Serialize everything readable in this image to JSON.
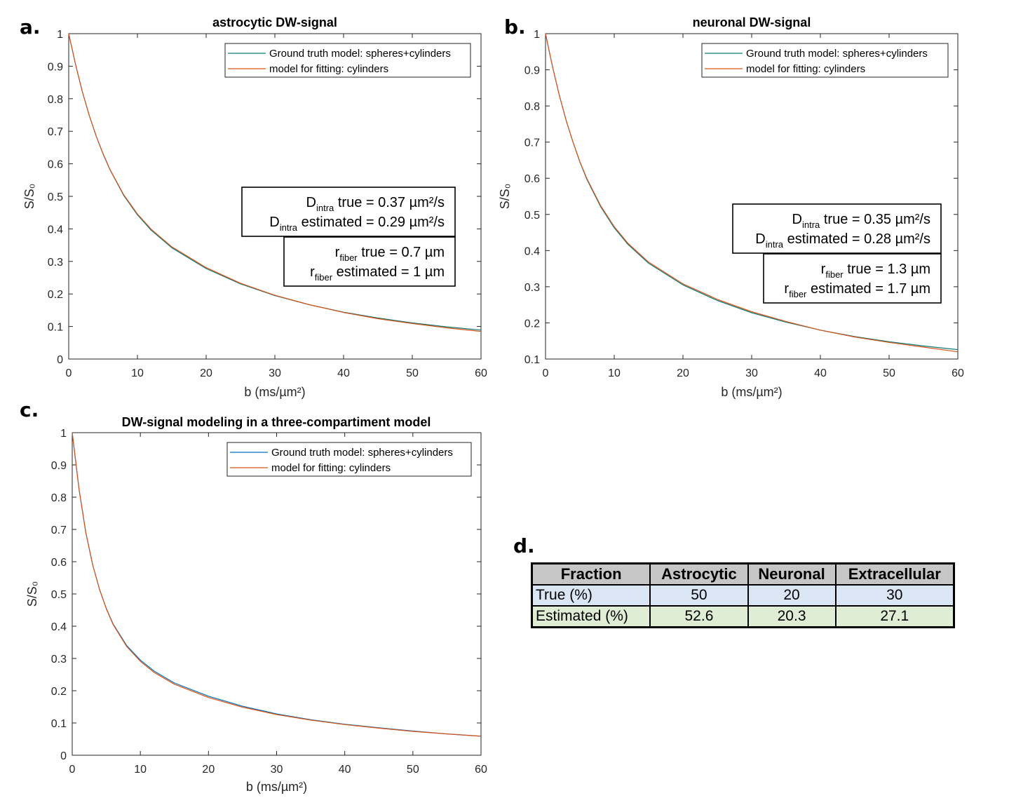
{
  "panels": {
    "a": {
      "letter": "a."
    },
    "b": {
      "letter": "b."
    },
    "c": {
      "letter": "c."
    },
    "d": {
      "letter": "d."
    }
  },
  "chart_data": [
    {
      "id": "a",
      "type": "line",
      "title": "astrocytic DW-signal",
      "xlabel": "b (ms/µm²)",
      "ylabel": "S/S₀",
      "xlim": [
        0,
        60
      ],
      "ylim": [
        0,
        1
      ],
      "xticks": [
        0,
        10,
        20,
        30,
        40,
        50,
        60
      ],
      "yticks": [
        0,
        0.1,
        0.2,
        0.3,
        0.4,
        0.5,
        0.6,
        0.7,
        0.8,
        0.9,
        1
      ],
      "grid": false,
      "legend_position": "top-right",
      "series": [
        {
          "name": "Ground truth model: spheres+cylinders",
          "color": "#0b7a75",
          "x": [
            0,
            1,
            2,
            3,
            4,
            5,
            6,
            8,
            10,
            12,
            15,
            20,
            25,
            30,
            35,
            40,
            45,
            50,
            55,
            60
          ],
          "y": [
            1.0,
            0.905,
            0.82,
            0.748,
            0.685,
            0.63,
            0.582,
            0.503,
            0.443,
            0.396,
            0.342,
            0.278,
            0.231,
            0.195,
            0.167,
            0.144,
            0.126,
            0.111,
            0.099,
            0.089
          ]
        },
        {
          "name": "model for fitting: cylinders",
          "color": "#d95319",
          "x": [
            0,
            1,
            2,
            3,
            4,
            5,
            6,
            8,
            10,
            12,
            15,
            20,
            25,
            30,
            35,
            40,
            45,
            50,
            55,
            60
          ],
          "y": [
            1.0,
            0.905,
            0.82,
            0.748,
            0.685,
            0.631,
            0.583,
            0.505,
            0.446,
            0.399,
            0.345,
            0.281,
            0.233,
            0.196,
            0.167,
            0.143,
            0.124,
            0.109,
            0.096,
            0.085
          ]
        }
      ],
      "annotations": [
        {
          "lines": [
            {
              "base": "D",
              "sub": "intra",
              "text": " true = 0.37 µm²/s"
            },
            {
              "base": "D",
              "sub": "intra",
              "text": " estimated = 0.29 µm²/s"
            }
          ]
        },
        {
          "lines": [
            {
              "base": "r",
              "sub": "fiber",
              "text": " true = 0.7 µm"
            },
            {
              "base": "r",
              "sub": "fiber",
              "text": " estimated = 1 µm"
            }
          ]
        }
      ]
    },
    {
      "id": "b",
      "type": "line",
      "title": "neuronal DW-signal",
      "xlabel": "b (ms/µm²)",
      "ylabel": "S/S₀",
      "xlim": [
        0,
        60
      ],
      "ylim": [
        0.1,
        1
      ],
      "xticks": [
        0,
        10,
        20,
        30,
        40,
        50,
        60
      ],
      "yticks": [
        0.1,
        0.2,
        0.3,
        0.4,
        0.5,
        0.6,
        0.7,
        0.8,
        0.9,
        1
      ],
      "grid": false,
      "legend_position": "top-right",
      "series": [
        {
          "name": "Ground truth model: spheres+cylinders",
          "color": "#0b7a75",
          "x": [
            0,
            1,
            2,
            3,
            4,
            5,
            6,
            8,
            10,
            12,
            15,
            20,
            25,
            30,
            35,
            40,
            45,
            50,
            55,
            60
          ],
          "y": [
            1.0,
            0.91,
            0.83,
            0.76,
            0.7,
            0.645,
            0.598,
            0.522,
            0.463,
            0.417,
            0.365,
            0.305,
            0.262,
            0.228,
            0.202,
            0.18,
            0.162,
            0.148,
            0.136,
            0.126
          ]
        },
        {
          "name": "model for fitting: cylinders",
          "color": "#d95319",
          "x": [
            0,
            1,
            2,
            3,
            4,
            5,
            6,
            8,
            10,
            12,
            15,
            20,
            25,
            30,
            35,
            40,
            45,
            50,
            55,
            60
          ],
          "y": [
            1.0,
            0.91,
            0.83,
            0.76,
            0.7,
            0.646,
            0.6,
            0.525,
            0.466,
            0.42,
            0.368,
            0.308,
            0.265,
            0.231,
            0.204,
            0.18,
            0.161,
            0.146,
            0.133,
            0.12
          ]
        }
      ],
      "annotations": [
        {
          "lines": [
            {
              "base": "D",
              "sub": "intra",
              "text": " true = 0.35 µm²/s"
            },
            {
              "base": "D",
              "sub": "intra",
              "text": " estimated = 0.28 µm²/s"
            }
          ]
        },
        {
          "lines": [
            {
              "base": "r",
              "sub": "fiber",
              "text": " true = 1.3 µm"
            },
            {
              "base": "r",
              "sub": "fiber",
              "text": " estimated = 1.7 µm"
            }
          ]
        }
      ]
    },
    {
      "id": "c",
      "type": "line",
      "title": "DW-signal modeling in a three-compartiment model",
      "xlabel": "b (ms/µm²)",
      "ylabel": "S/S₀",
      "xlim": [
        0,
        60
      ],
      "ylim": [
        0,
        1
      ],
      "xticks": [
        0,
        10,
        20,
        30,
        40,
        50,
        60
      ],
      "yticks": [
        0,
        0.1,
        0.2,
        0.3,
        0.4,
        0.5,
        0.6,
        0.7,
        0.8,
        0.9,
        1
      ],
      "grid": false,
      "legend_position": "top-right",
      "series": [
        {
          "name": "Ground truth model: spheres+cylinders",
          "color": "#0072bd",
          "x": [
            0,
            1,
            2,
            3,
            4,
            5,
            6,
            8,
            10,
            12,
            15,
            20,
            25,
            30,
            35,
            40,
            45,
            50,
            55,
            60
          ],
          "y": [
            1.0,
            0.825,
            0.69,
            0.59,
            0.515,
            0.455,
            0.407,
            0.34,
            0.295,
            0.261,
            0.224,
            0.183,
            0.152,
            0.128,
            0.11,
            0.096,
            0.085,
            0.075,
            0.066,
            0.059
          ]
        },
        {
          "name": "model for fitting: cylinders",
          "color": "#d95319",
          "x": [
            0,
            1,
            2,
            3,
            4,
            5,
            6,
            8,
            10,
            12,
            15,
            20,
            25,
            30,
            35,
            40,
            45,
            50,
            55,
            60
          ],
          "y": [
            1.0,
            0.825,
            0.69,
            0.59,
            0.514,
            0.454,
            0.405,
            0.337,
            0.291,
            0.257,
            0.22,
            0.179,
            0.149,
            0.126,
            0.109,
            0.095,
            0.084,
            0.074,
            0.066,
            0.059
          ]
        }
      ]
    },
    {
      "id": "d",
      "type": "table",
      "columns": [
        "Fraction",
        "Astrocytic",
        "Neuronal",
        "Extracellular"
      ],
      "rows": [
        [
          "True (%)",
          "50",
          "20",
          "30"
        ],
        [
          "Estimated (%)",
          "52.6",
          "20.3",
          "27.1"
        ]
      ]
    }
  ]
}
